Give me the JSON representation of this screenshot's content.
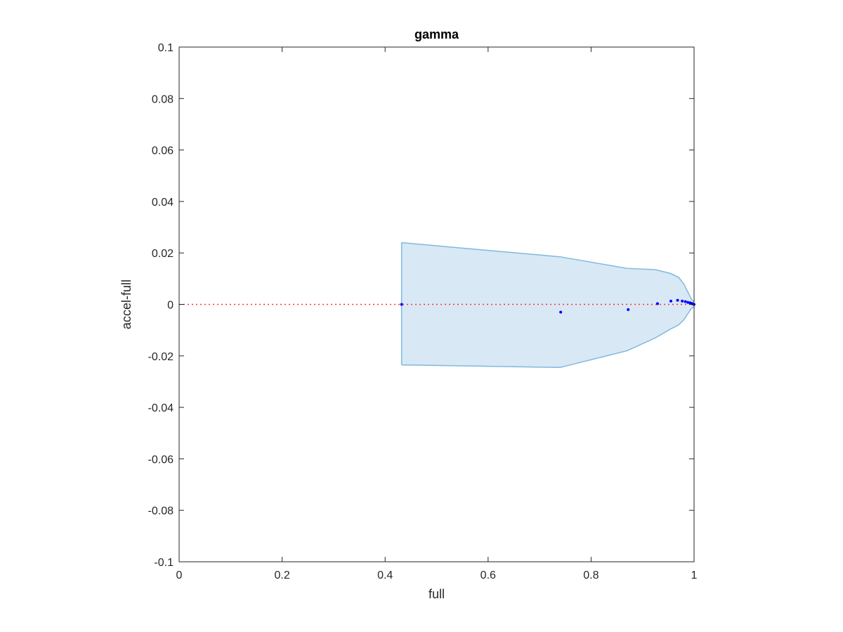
{
  "chart_data": {
    "type": "scatter",
    "title": "gamma",
    "xlabel": "full",
    "ylabel": "accel-full",
    "xlim": [
      0,
      1
    ],
    "ylim": [
      -0.1,
      0.1
    ],
    "xticks": [
      0,
      0.2,
      0.4,
      0.6,
      0.8,
      1
    ],
    "xtick_labels": [
      "0",
      "0.2",
      "0.4",
      "0.6",
      "0.8",
      "1"
    ],
    "yticks": [
      -0.1,
      -0.08,
      -0.06,
      -0.04,
      -0.02,
      0,
      0.02,
      0.04,
      0.06,
      0.08,
      0.1
    ],
    "ytick_labels": [
      "-0.1",
      "-0.08",
      "-0.06",
      "-0.04",
      "-0.02",
      "0",
      "0.02",
      "0.04",
      "0.06",
      "0.08",
      "0.1"
    ],
    "grid": false,
    "reference_line": {
      "y": 0,
      "color": "#ff3333",
      "style": "dotted"
    },
    "band": {
      "color_fill": "#d9e8f5",
      "color_edge": "#7fb9de",
      "x": [
        0.432,
        0.74,
        0.87,
        0.925,
        0.955,
        0.97,
        0.98,
        0.99,
        0.995,
        1.0
      ],
      "upper": [
        0.024,
        0.0185,
        0.014,
        0.0135,
        0.012,
        0.0105,
        0.008,
        0.004,
        0.002,
        0.001
      ],
      "lower": [
        -0.0235,
        -0.0245,
        -0.018,
        -0.013,
        -0.0095,
        -0.008,
        -0.006,
        -0.003,
        -0.0015,
        -0.001
      ]
    },
    "series": [
      {
        "color": "#0000ff",
        "points": [
          [
            0.432,
            0.0
          ],
          [
            0.741,
            -0.003
          ],
          [
            0.872,
            -0.002
          ],
          [
            0.929,
            0.0003
          ],
          [
            0.955,
            0.0013
          ],
          [
            0.968,
            0.0016
          ],
          [
            0.977,
            0.0013
          ],
          [
            0.983,
            0.0011
          ],
          [
            0.988,
            0.0008
          ],
          [
            0.992,
            0.0006
          ],
          [
            0.995,
            0.0004
          ],
          [
            0.997,
            0.0002
          ],
          [
            0.999,
            0.0001
          ],
          [
            1.0,
            0.0
          ]
        ]
      }
    ]
  }
}
